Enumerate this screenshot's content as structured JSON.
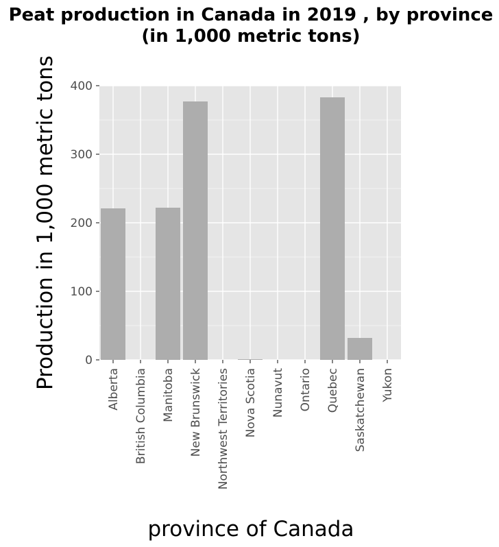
{
  "chart_data": {
    "type": "bar",
    "title": "Peat production in Canada in 2019 , by province",
    "subtitle": "(in 1,000 metric tons)",
    "xlabel": "province of Canada",
    "ylabel": "Production in 1,000 metric tons",
    "categories": [
      "Alberta",
      "British Columbia",
      "Manitoba",
      "New Brunswick",
      "Northwest Territories",
      "Nova Scotia",
      "Nunavut",
      "Ontario",
      "Quebec",
      "Saskatchewan",
      "Yukon"
    ],
    "values": [
      221,
      0,
      222,
      377,
      0,
      1,
      0,
      0,
      383,
      32,
      0
    ],
    "ylim": [
      0,
      400
    ],
    "yticks": [
      0,
      100,
      200,
      300,
      400
    ],
    "grid": true,
    "colors": {
      "panel": "#e5e5e5",
      "bar": "#adadad",
      "grid": "#ffffff"
    }
  }
}
